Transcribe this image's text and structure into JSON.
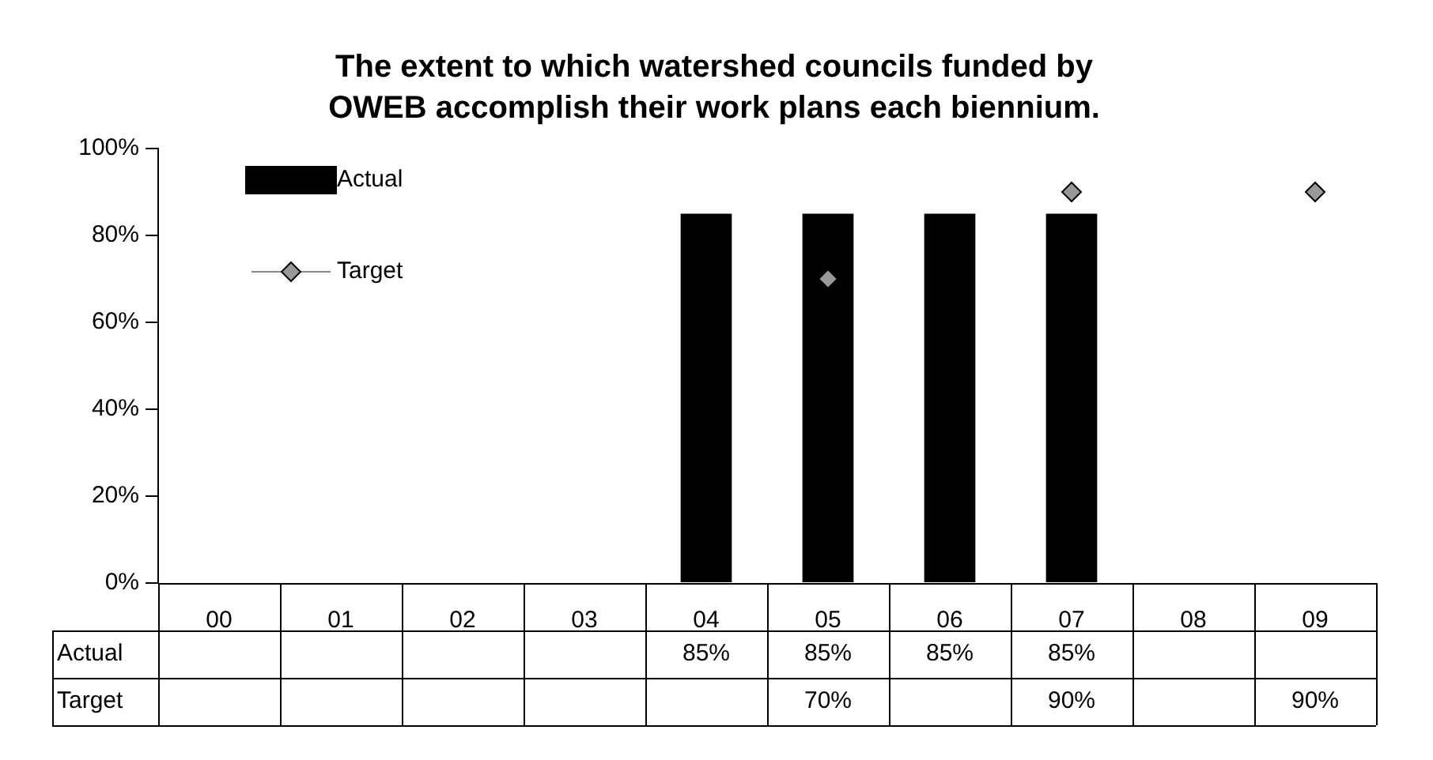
{
  "chart_data": {
    "type": "bar",
    "title": "The extent to which watershed councils funded by OWEB accomplish their work plans each biennium.",
    "categories": [
      "00",
      "01",
      "02",
      "03",
      "04",
      "05",
      "06",
      "07",
      "08",
      "09"
    ],
    "series": [
      {
        "name": "Actual",
        "color": "#000000",
        "values": [
          null,
          null,
          null,
          null,
          85,
          85,
          85,
          85,
          null,
          null
        ],
        "value_labels": [
          null,
          null,
          null,
          null,
          "85%",
          "85%",
          "85%",
          "85%",
          null,
          null
        ]
      },
      {
        "name": "Target",
        "type": "scatter",
        "color": "#999999",
        "marker": "diamond",
        "values": [
          null,
          null,
          null,
          null,
          null,
          70,
          null,
          90,
          null,
          90
        ],
        "value_labels": [
          null,
          null,
          null,
          null,
          null,
          "70%",
          null,
          "90%",
          null,
          "90%"
        ]
      }
    ],
    "ylim": [
      0,
      100
    ],
    "yticks": [
      {
        "value": 0,
        "label": "0%"
      },
      {
        "value": 20,
        "label": "20%"
      },
      {
        "value": 40,
        "label": "40%"
      },
      {
        "value": 60,
        "label": "60%"
      },
      {
        "value": 80,
        "label": "80%"
      },
      {
        "value": 100,
        "label": "100%"
      }
    ],
    "legend": "top left"
  }
}
